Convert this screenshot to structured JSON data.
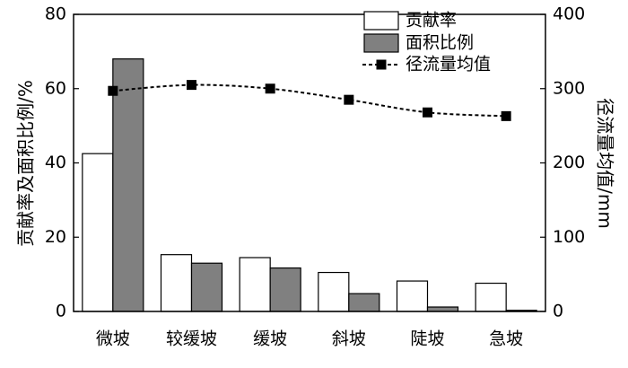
{
  "chart_data": {
    "type": "bar",
    "title": "",
    "categories": [
      "微坡",
      "较缓坡",
      "缓坡",
      "斜坡",
      "陡坡",
      "急坡"
    ],
    "series": [
      {
        "name": "贡献率",
        "kind": "bar",
        "axis": "left",
        "color": "#ffffff",
        "values": [
          42.5,
          15.3,
          14.5,
          10.5,
          8.2,
          7.6
        ]
      },
      {
        "name": "面积比例",
        "kind": "bar",
        "axis": "left",
        "color": "#808080",
        "values": [
          68.0,
          13.0,
          11.7,
          4.8,
          1.2,
          0.3
        ]
      },
      {
        "name": "径流量均值",
        "kind": "line",
        "axis": "right",
        "color": "#000000",
        "values": [
          297,
          305,
          300,
          285,
          268,
          263
        ]
      }
    ],
    "ylabel": "贡献率及面积比例/%",
    "y2label": "径流量均值/mm",
    "ylim": [
      0,
      80
    ],
    "y2lim": [
      0,
      400
    ],
    "yticks": [
      "0",
      "20",
      "40",
      "60",
      "80"
    ],
    "y2ticks": [
      "0",
      "100",
      "200",
      "300",
      "400"
    ],
    "legend_position": "top-right",
    "grid": false
  }
}
